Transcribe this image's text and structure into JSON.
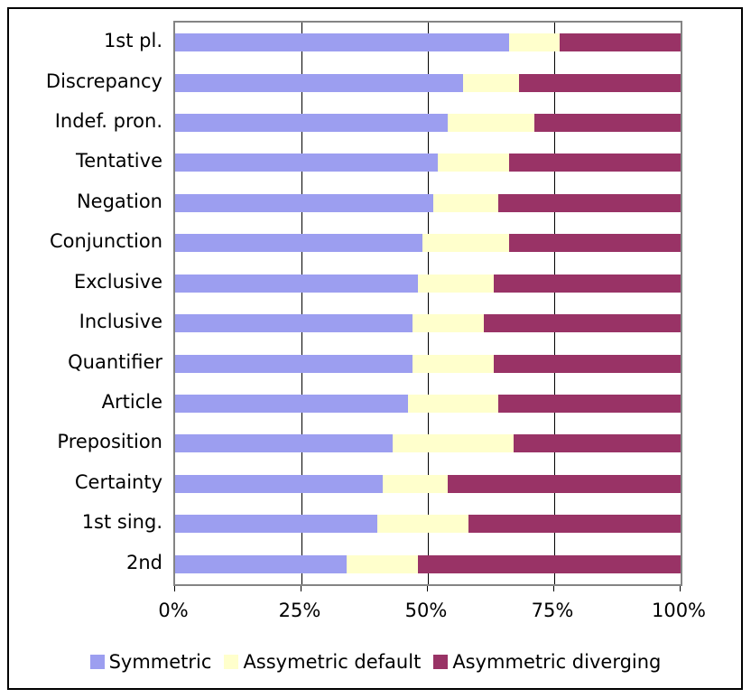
{
  "chart_data": {
    "type": "bar",
    "orientation": "horizontal-stacked-100pct",
    "categories": [
      "1st pl.",
      "Discrepancy",
      "Indef. pron.",
      "Tentative",
      "Negation",
      "Conjunction",
      "Exclusive",
      "Inclusive",
      "Quantifier",
      "Article",
      "Preposition",
      "Certainty",
      "1st sing.",
      "2nd"
    ],
    "series": [
      {
        "name": "Symmetric",
        "color": "#9C9EF0",
        "values": [
          66,
          57,
          54,
          52,
          51,
          49,
          48,
          47,
          47,
          46,
          43,
          41,
          40,
          34
        ]
      },
      {
        "name": "Assymetric default",
        "color": "#FFFFCC",
        "values": [
          10,
          11,
          17,
          14,
          13,
          17,
          15,
          14,
          16,
          18,
          24,
          13,
          18,
          14
        ]
      },
      {
        "name": "Asymmetric diverging",
        "color": "#993366",
        "values": [
          24,
          32,
          29,
          34,
          36,
          34,
          37,
          39,
          37,
          36,
          33,
          46,
          42,
          52
        ]
      }
    ],
    "x_ticks": [
      {
        "label": "0%",
        "value": 0
      },
      {
        "label": "25%",
        "value": 25
      },
      {
        "label": "50%",
        "value": 50
      },
      {
        "label": "75%",
        "value": 75
      },
      {
        "label": "100%",
        "value": 100
      }
    ],
    "xlim": [
      0,
      100
    ],
    "gridlines_at": [
      25,
      50,
      75
    ],
    "gridline_color": "#000000",
    "plot_border_color": "#848484",
    "legend_position": "bottom",
    "title": "",
    "xlabel": "",
    "ylabel": ""
  }
}
